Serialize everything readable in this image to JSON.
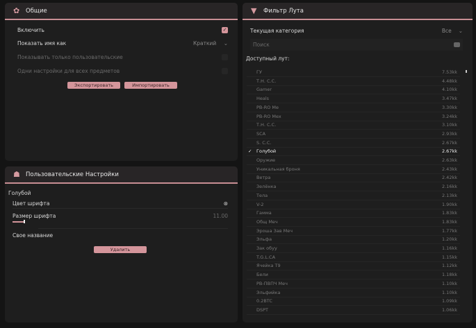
{
  "general": {
    "title": "Общие",
    "icon": "gear-icon",
    "enable_label": "Включить",
    "enable": true,
    "show_name_label": "Показать имя как",
    "show_name_value": "Краткий",
    "only_custom_label": "Показывать только пользовательские",
    "only_custom": false,
    "same_settings_label": "Одни настройки для всех предметов",
    "same_settings": false,
    "export_label": "Экспортировать",
    "import_label": "Импортировать"
  },
  "custom": {
    "title": "Пользовательские Настройки",
    "icon": "user-settings-icon",
    "section": "Голубой",
    "font_color_label": "Цвет шрифта",
    "font_size_label": "Размер шрифта",
    "font_size_value": "11.00",
    "font_size_fraction": 0.1,
    "custom_name_label": "Свое название",
    "delete_label": "Удалить"
  },
  "filter": {
    "title": "Фильтр Лута",
    "icon": "filter-icon",
    "category_label": "Текущая категория",
    "category_value": "Все",
    "search_placeholder": "Поиск",
    "available_label": "Доступный лут:",
    "items": [
      {
        "name": "ГУ",
        "value": "7.53kk"
      },
      {
        "name": "Т.Н. С.С.",
        "value": "4.48kk"
      },
      {
        "name": "Gamer",
        "value": "4.10kk"
      },
      {
        "name": "Heals",
        "value": "3.47kk"
      },
      {
        "name": "PB-RO Me",
        "value": "3.30kk"
      },
      {
        "name": "PB-RO Mex",
        "value": "3.24kk"
      },
      {
        "name": "Т.Н. С.С.",
        "value": "3.10kk"
      },
      {
        "name": "SCA",
        "value": "2.93kk"
      },
      {
        "name": "S. C.C.",
        "value": "2.67kk"
      },
      {
        "name": "Голубой",
        "value": "2.67kk",
        "checked": true
      },
      {
        "name": "Оружие",
        "value": "2.63kk"
      },
      {
        "name": "Уникальная броня",
        "value": "2.43kk"
      },
      {
        "name": "Ветра",
        "value": "2.42kk"
      },
      {
        "name": "Зелёнка",
        "value": "2.16kk"
      },
      {
        "name": "Тела",
        "value": "2.13kk"
      },
      {
        "name": "V-2",
        "value": "1.90kk"
      },
      {
        "name": "Гамма",
        "value": "1.83kk"
      },
      {
        "name": "Общ Меч",
        "value": "1.83kk"
      },
      {
        "name": "Эроша Зав Меч",
        "value": "1.77kk"
      },
      {
        "name": "Эльфа",
        "value": "1.20kk"
      },
      {
        "name": "Зак обуу",
        "value": "1.16kk"
      },
      {
        "name": "T.G.L.CA",
        "value": "1.15kk"
      },
      {
        "name": "Ячейка Т9",
        "value": "1.12kk"
      },
      {
        "name": "Бели",
        "value": "1.18kk"
      },
      {
        "name": "PB-ПВПЧ Меч",
        "value": "1.10kk"
      },
      {
        "name": "Эльфийка",
        "value": "1.10kk"
      },
      {
        "name": "0.2BTC",
        "value": "1.09kk"
      },
      {
        "name": "DSPT",
        "value": "1.06kk"
      }
    ]
  },
  "colors": {
    "accent": "#d4959b",
    "panel": "#1e1e1e",
    "background": "#141414"
  }
}
